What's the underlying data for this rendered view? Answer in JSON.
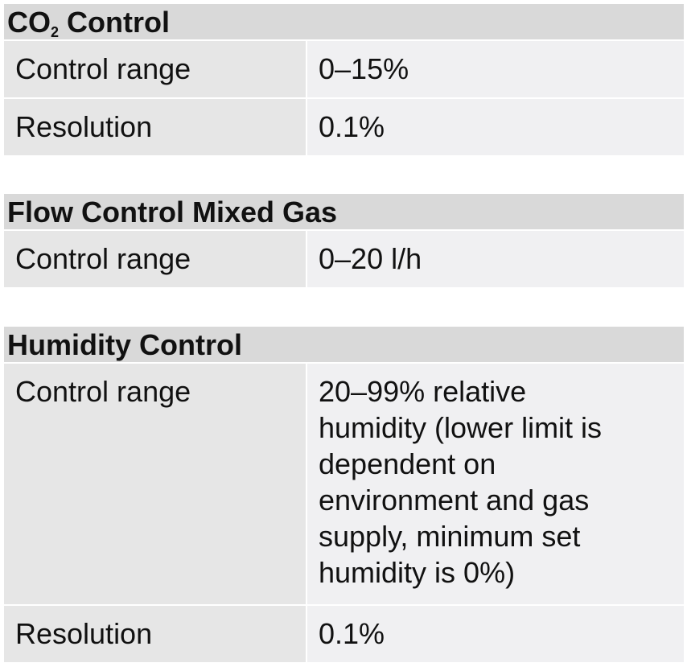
{
  "sections": [
    {
      "title_main": "CO",
      "title_sub": "2",
      "title_rest": " Control",
      "rows": [
        {
          "label": "Control range",
          "value": "0–15%"
        },
        {
          "label": "Resolution",
          "value": "0.1%"
        }
      ]
    },
    {
      "title": "Flow Control Mixed Gas",
      "rows": [
        {
          "label": "Control range",
          "value": "0–20 l/h"
        }
      ]
    },
    {
      "title": "Humidity Control",
      "rows": [
        {
          "label": "Control range",
          "value": "20–99% relative\nhumidity (lower limit is\ndependent on\nenvironment and gas\nsupply, minimum set\nhumidity is 0%)"
        },
        {
          "label": "Resolution",
          "value": "0.1%"
        }
      ]
    }
  ]
}
